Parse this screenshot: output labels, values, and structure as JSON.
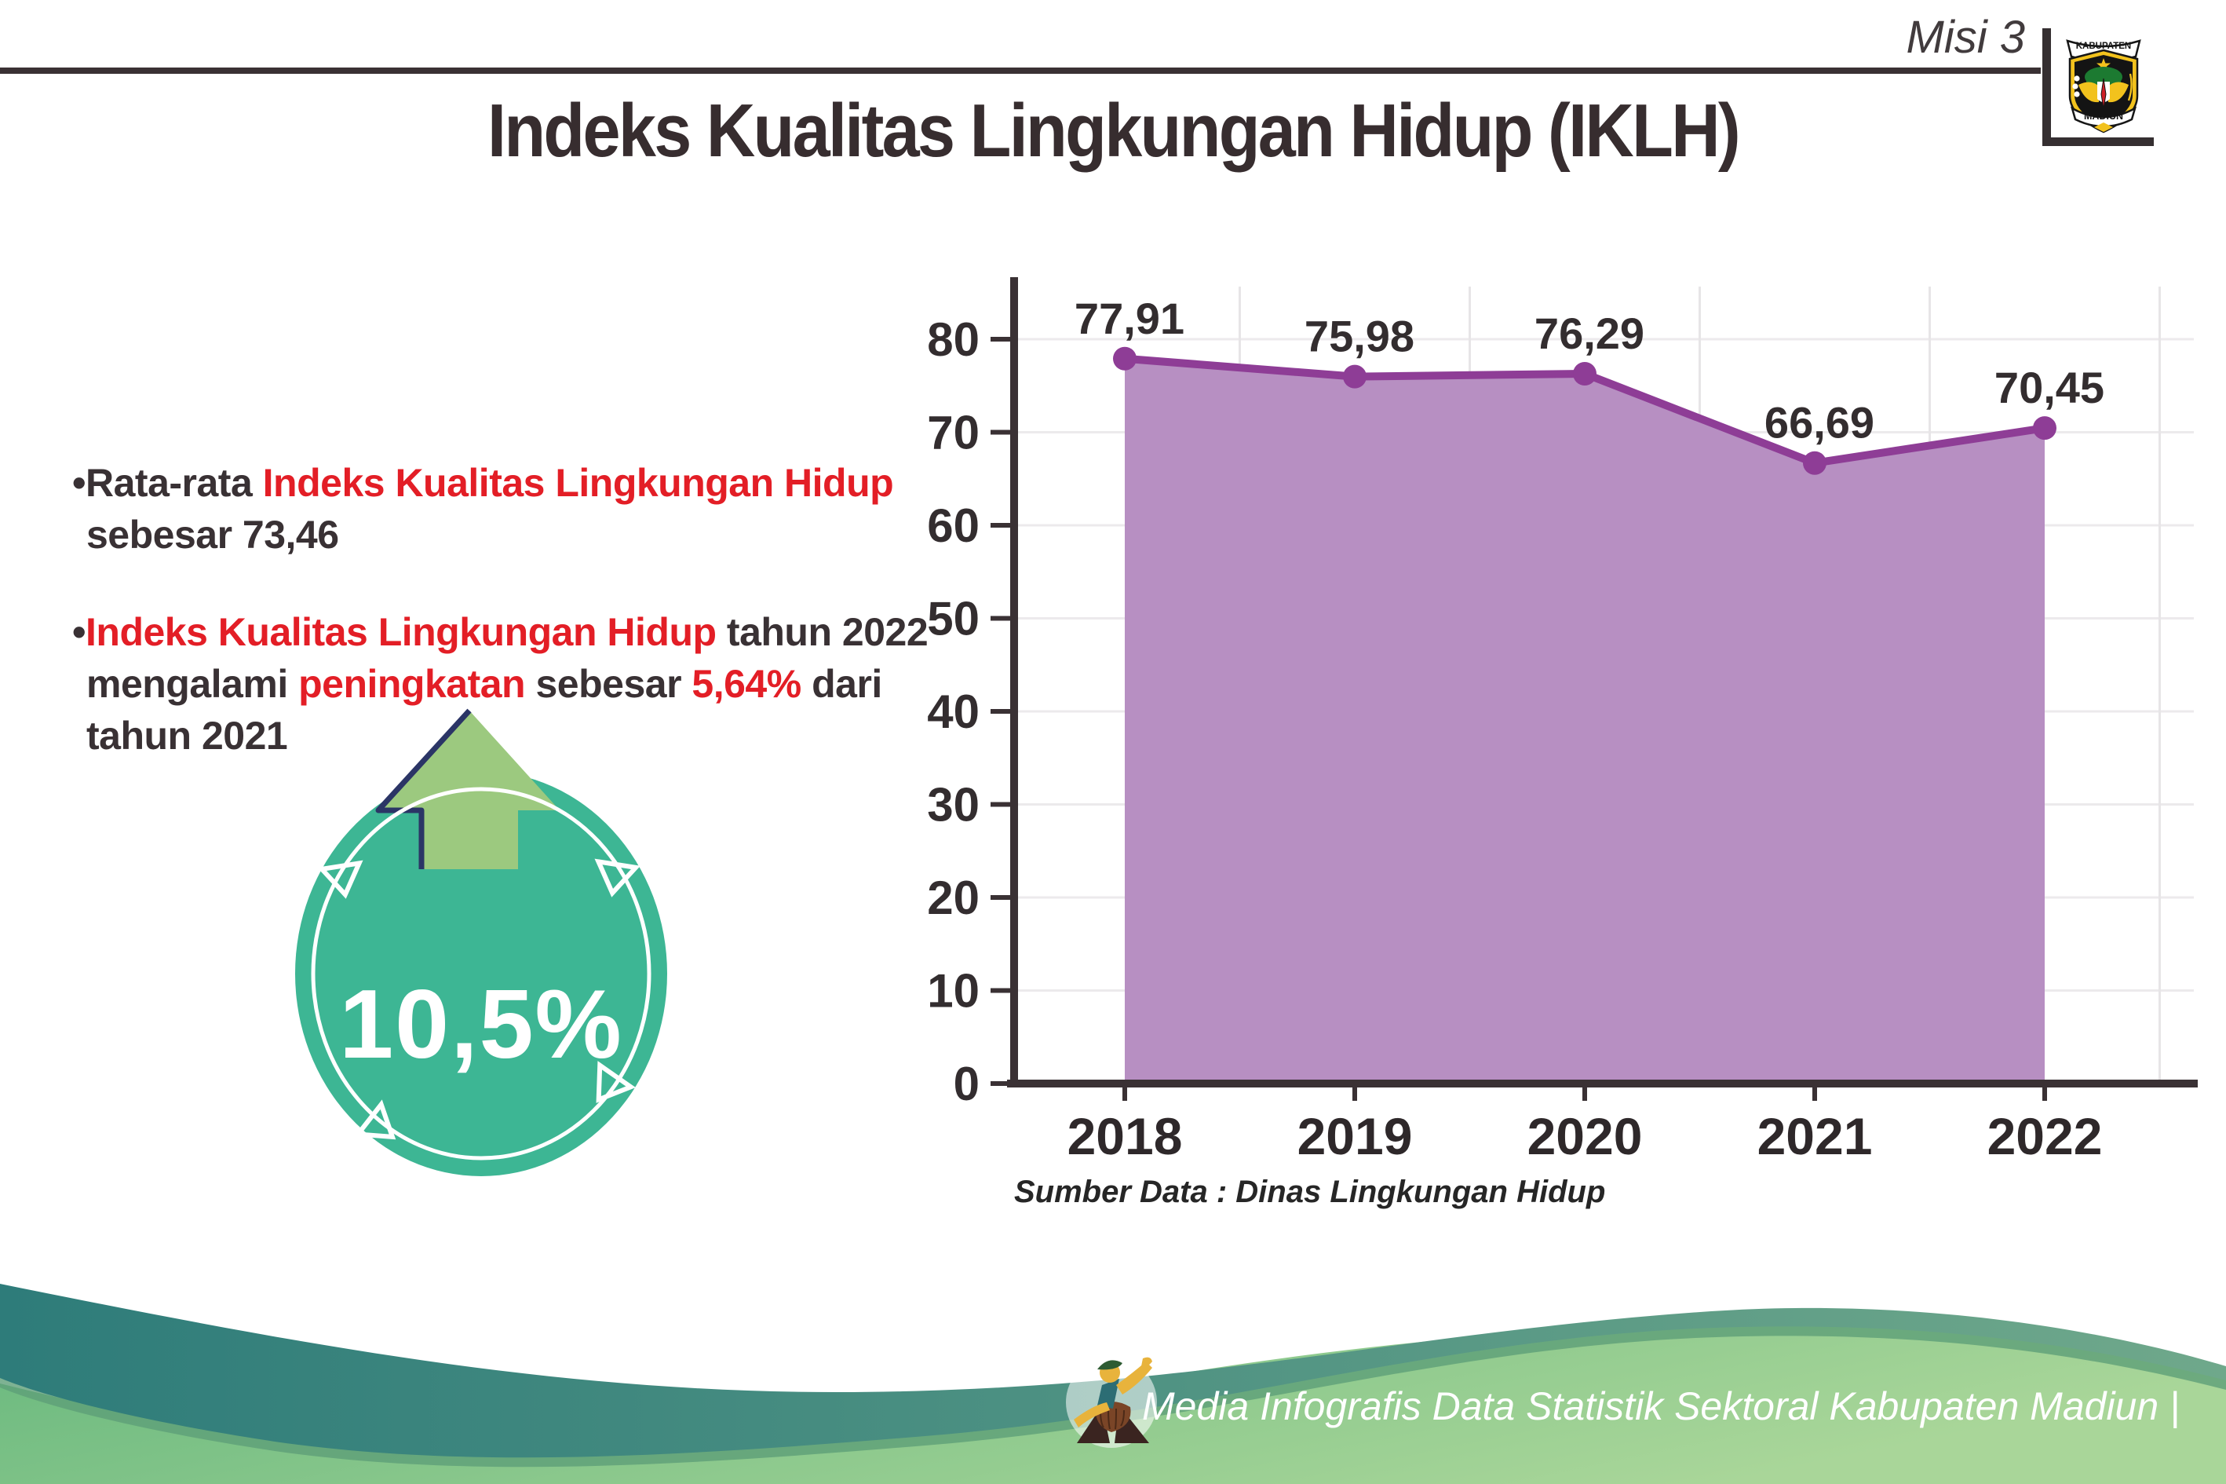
{
  "header": {
    "misi_label": "Misi 3",
    "title": "Indeks Kualitas Lingkungan Hidup (IKLH)",
    "logo": {
      "top_banner": "KABUPATEN",
      "bottom_banner": "MADIUN"
    }
  },
  "bullets": [
    {
      "segments": [
        {
          "text": "•Rata-rata ",
          "color": "dark"
        },
        {
          "text": "Indeks Kualitas Lingkungan Hidup",
          "color": "red"
        },
        {
          "br": true
        },
        {
          "text": "sebesar 73,46",
          "color": "dark"
        }
      ]
    },
    {
      "segments": [
        {
          "text": "•",
          "color": "dark"
        },
        {
          "text": "Indeks Kualitas Lingkungan Hidup",
          "color": "red"
        },
        {
          "text": " tahun 2022",
          "color": "dark"
        },
        {
          "br": true
        },
        {
          "text": "mengalami ",
          "color": "dark"
        },
        {
          "text": "peningkatan",
          "color": "red"
        },
        {
          "text": " sebesar ",
          "color": "dark"
        },
        {
          "text": "5,64%",
          "color": "red"
        },
        {
          "text": " dari",
          "color": "dark"
        },
        {
          "br": true
        },
        {
          "text": "tahun 2021",
          "color": "dark"
        }
      ]
    }
  ],
  "badge": {
    "value": "10,5%"
  },
  "chart_data": {
    "type": "area",
    "categories": [
      "2018",
      "2019",
      "2020",
      "2021",
      "2022"
    ],
    "values": [
      77.91,
      75.98,
      76.29,
      66.69,
      70.45
    ],
    "value_labels": [
      "77,91",
      "75,98",
      "76,29",
      "66,69",
      "70,45"
    ],
    "title": "",
    "xlabel": "",
    "ylabel": "",
    "ylim": [
      0,
      80
    ],
    "ytick_step": 10,
    "yticks": [
      0,
      10,
      20,
      30,
      40,
      50,
      60,
      70,
      80
    ],
    "grid": true,
    "legend": "none",
    "area_color": "#b78fc2",
    "line_color": "#8e3d96"
  },
  "source_note": "Sumber Data : Dinas Lingkungan Hidup",
  "footer": {
    "credit": "Media Infografis Data Statistik Sektoral Kabupaten Madiun |"
  },
  "colors": {
    "red": "#e31e26",
    "dark_text": "#393134",
    "badge_teal": "#3db694",
    "arrow_green": "#9cc97f",
    "arrow_outline_navy": "#2b3566",
    "wave_teal_left": "#2e7c7a",
    "wave_teal_right": "#6fa88b",
    "wave_green_left": "#68b87e",
    "wave_green_right": "#a9d699"
  }
}
